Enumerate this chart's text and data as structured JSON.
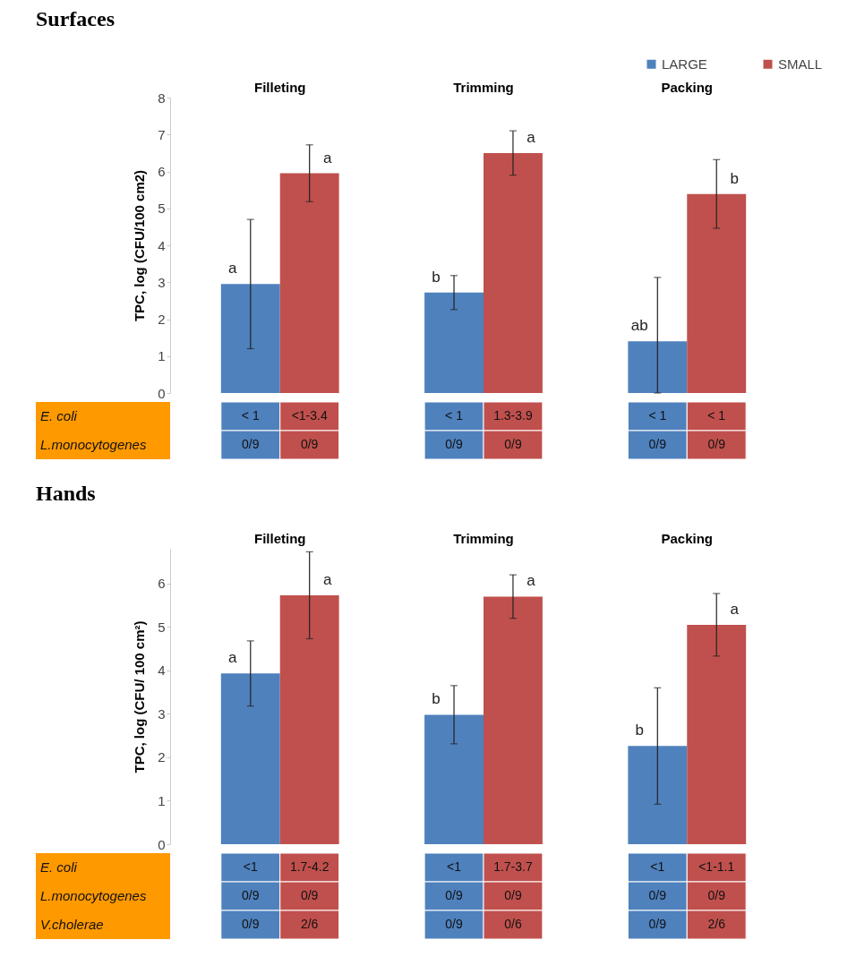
{
  "chart_data": [
    {
      "type": "bar",
      "title": "Surfaces",
      "ylabel": "TPC, log (CFU/100 cm2)",
      "categories": [
        "Filleting",
        "Trimming",
        "Packing"
      ],
      "ylim": [
        0,
        8
      ],
      "yticks": [
        0,
        1,
        2,
        3,
        4,
        5,
        6,
        7,
        8
      ],
      "legend": "top right",
      "series": [
        {
          "name": "LARGE",
          "color": "#4f81bd",
          "values": [
            2.95,
            2.72,
            1.4
          ],
          "errors": [
            [
              1.2,
              4.7
            ],
            0.46,
            [
              0,
              3.13
            ]
          ]
        },
        {
          "name": "SMALL",
          "color": "#c0504d",
          "values": [
            5.95,
            6.5,
            5.39
          ],
          "errors": [
            0.77,
            0.6,
            0.93
          ]
        }
      ],
      "annotations": [
        "a",
        "a",
        "b",
        "a",
        "ab",
        "b",
        "E. coli",
        "< 1",
        "<1-3.4",
        "< 1",
        "1.3-3.9",
        "< 1",
        "< 1",
        "L.monocytogenes",
        "0/9",
        "0/9",
        "0/9",
        "0/9",
        "0/9",
        "0/9"
      ]
    },
    {
      "type": "bar",
      "title": "Hands",
      "ylabel": "TPC, log (CFU/ 100 cm²)",
      "categories": [
        "Filleting",
        "Trimming",
        "Packing"
      ],
      "ylim": [
        0,
        6.8
      ],
      "yticks": [
        0,
        1,
        2,
        3,
        4,
        5,
        6
      ],
      "series": [
        {
          "color": "#4f81bd",
          "values": [
            3.93,
            2.98,
            2.26
          ],
          "errors": [
            0.75,
            0.67,
            1.34
          ]
        },
        {
          "color": "#c0504d",
          "values": [
            5.73,
            5.7,
            5.05
          ],
          "errors": [
            1.0,
            0.5,
            0.72
          ]
        }
      ],
      "annotations": [
        "a",
        "a",
        "b",
        "a",
        "b",
        "a",
        "E. coli",
        "<1",
        "1.7-4.2",
        "<1",
        "1.7-3.7",
        "<1",
        "<1-1.1",
        "L.monocytogenes",
        "0/9",
        "0/9",
        "0/9",
        "0/9",
        "0/9",
        "0/9",
        "V.cholerae",
        "0/9",
        "2/6",
        "0/9",
        "0/6",
        "0/9",
        "2/6"
      ]
    }
  ]
}
